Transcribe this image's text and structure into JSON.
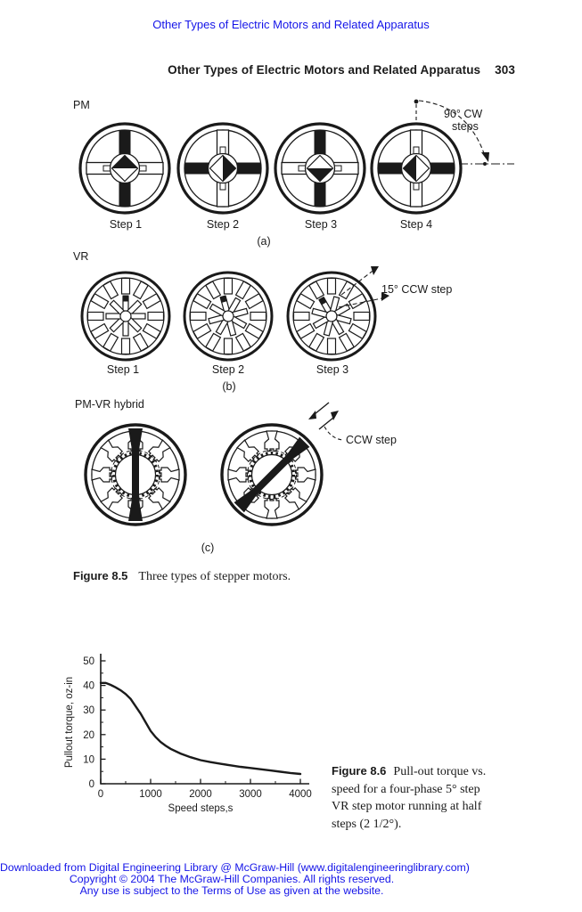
{
  "colors": {
    "link": "#1414e8",
    "ink": "#1a1a1a"
  },
  "top_link": "Other Types of Electric Motors and Related Apparatus",
  "header": {
    "title": "Other Types of Electric Motors and Related Apparatus",
    "page_number": "303"
  },
  "figure85": {
    "pm": {
      "label": "PM",
      "steps": [
        "Step 1",
        "Step 2",
        "Step 3",
        "Step 4"
      ],
      "annotation": [
        "90° CW",
        "steps"
      ],
      "sublabel": "(a)"
    },
    "vr": {
      "label": "VR",
      "steps": [
        "Step 1",
        "Step 2",
        "Step 3"
      ],
      "annotation": "15° CCW step",
      "sublabel": "(b)"
    },
    "hybrid": {
      "label": "PM-VR hybrid",
      "annotation": "CCW step",
      "sublabel": "(c)"
    },
    "caption_label": "Figure 8.5",
    "caption_text": "Three types of stepper motors."
  },
  "figure86": {
    "caption_label": "Figure 8.6",
    "caption_line1": "Pull-out torque vs.",
    "caption_lines": [
      "speed for a four-phase 5° step",
      "VR step motor running at half",
      "steps (2 1/2°)."
    ]
  },
  "chart_data": {
    "type": "line",
    "title": "",
    "xlabel": "Speed steps,s",
    "ylabel": "Pullout torque, oz-in",
    "xlim": [
      0,
      4000
    ],
    "ylim": [
      0,
      50
    ],
    "x_ticks": [
      0,
      1000,
      2000,
      3000,
      4000
    ],
    "y_ticks": [
      0,
      10,
      20,
      30,
      40,
      50
    ],
    "x_minor_step": 500,
    "y_minor_step": 5,
    "grid": false,
    "legend": false,
    "x": [
      0,
      100,
      200,
      300,
      400,
      500,
      600,
      700,
      800,
      900,
      1000,
      1100,
      1200,
      1300,
      1400,
      1600,
      1800,
      2000,
      2200,
      2400,
      2600,
      2800,
      3000,
      3200,
      3400,
      3600,
      3800,
      4000
    ],
    "y": [
      41,
      41,
      40.2,
      39.2,
      38,
      36.5,
      34.5,
      31.5,
      28.5,
      25,
      21.5,
      19,
      17,
      15.5,
      14.2,
      12.3,
      10.8,
      9.6,
      8.8,
      8.1,
      7.5,
      6.9,
      6.4,
      5.9,
      5.4,
      4.9,
      4.4,
      4
    ]
  },
  "footer": {
    "lines": [
      "Downloaded from Digital Engineering Library @ McGraw-Hill (www.digitalengineeringlibrary.com)",
      "Copyright © 2004 The McGraw-Hill Companies. All rights reserved.",
      "Any use is subject to the Terms of Use as given at the website."
    ]
  }
}
